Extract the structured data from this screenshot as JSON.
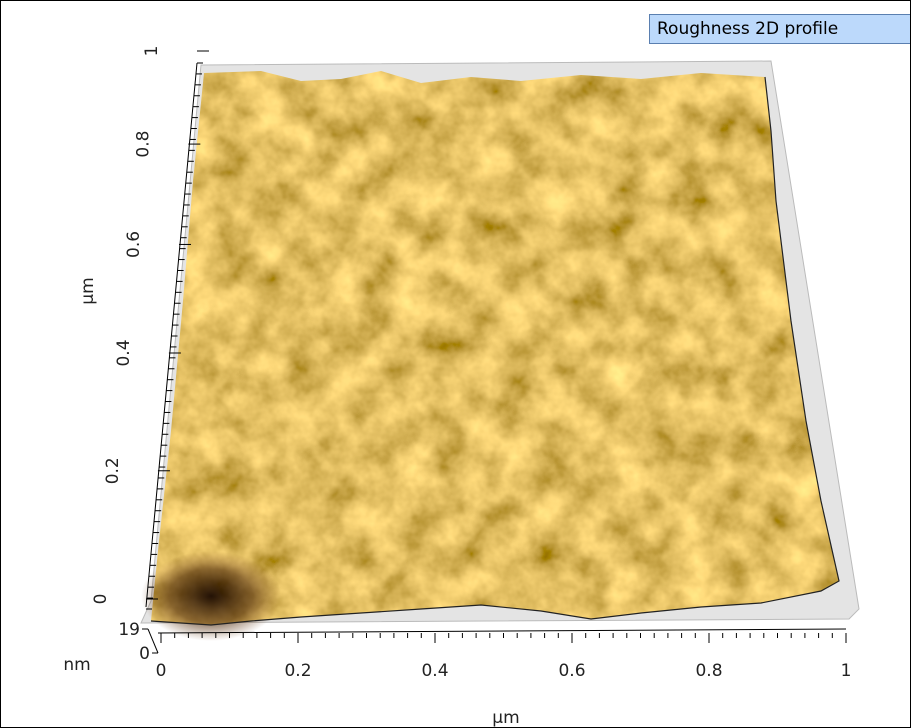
{
  "chart_data": {
    "type": "surface",
    "title": "Roughness 2D profile",
    "xlabel": "µm",
    "ylabel": "µm",
    "zlabel": "nm",
    "xlim": [
      0,
      1
    ],
    "xticks": [
      0,
      0.2,
      0.4,
      0.6,
      0.8,
      1
    ],
    "ylim": [
      0,
      1
    ],
    "yticks": [
      0,
      0.2,
      0.4,
      0.6,
      0.8,
      1
    ],
    "zlim": [
      0,
      19
    ],
    "zticks": [
      0,
      19
    ]
  }
}
